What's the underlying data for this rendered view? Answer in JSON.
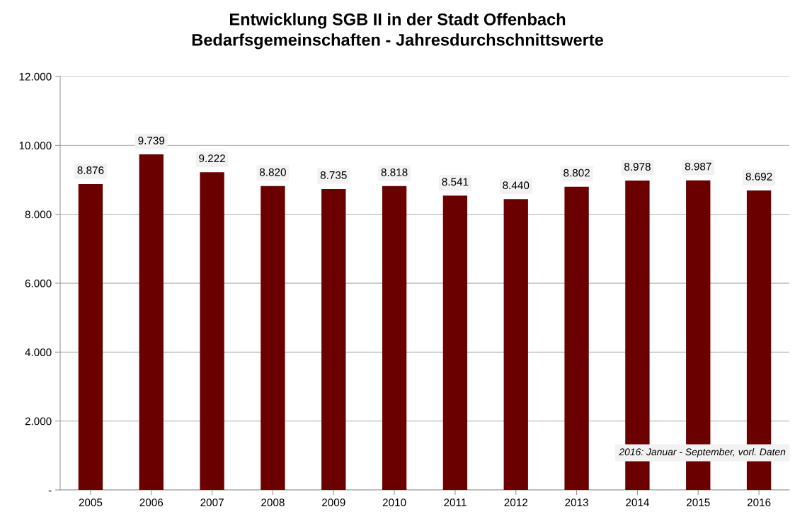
{
  "chart_data": {
    "type": "bar",
    "title": "Entwicklung SGB II in der Stadt Offenbach\nBedarfsgemeinschaften - Jahresdurchschnittswerte",
    "categories": [
      "2005",
      "2006",
      "2007",
      "2008",
      "2009",
      "2010",
      "2011",
      "2012",
      "2013",
      "2014",
      "2015",
      "2016"
    ],
    "values": [
      8876,
      9739,
      9222,
      8820,
      8735,
      8818,
      8541,
      8440,
      8802,
      8978,
      8987,
      8692
    ],
    "value_labels": [
      "8.876",
      "9.739",
      "9.222",
      "8.820",
      "8.735",
      "8.818",
      "8.541",
      "8.440",
      "8.802",
      "8.978",
      "8.987",
      "8.692"
    ],
    "color": "#6b0000",
    "ylim": [
      0,
      12000
    ],
    "yticks": [
      {
        "value": 0,
        "label": "-"
      },
      {
        "value": 2000,
        "label": "2.000"
      },
      {
        "value": 4000,
        "label": "4.000"
      },
      {
        "value": 6000,
        "label": "6.000"
      },
      {
        "value": 8000,
        "label": "8.000"
      },
      {
        "value": 10000,
        "label": "10.000"
      },
      {
        "value": 12000,
        "label": "12.000"
      }
    ],
    "grid": "y",
    "annotations": [
      "2016: Januar - September, vorl. Daten"
    ]
  }
}
